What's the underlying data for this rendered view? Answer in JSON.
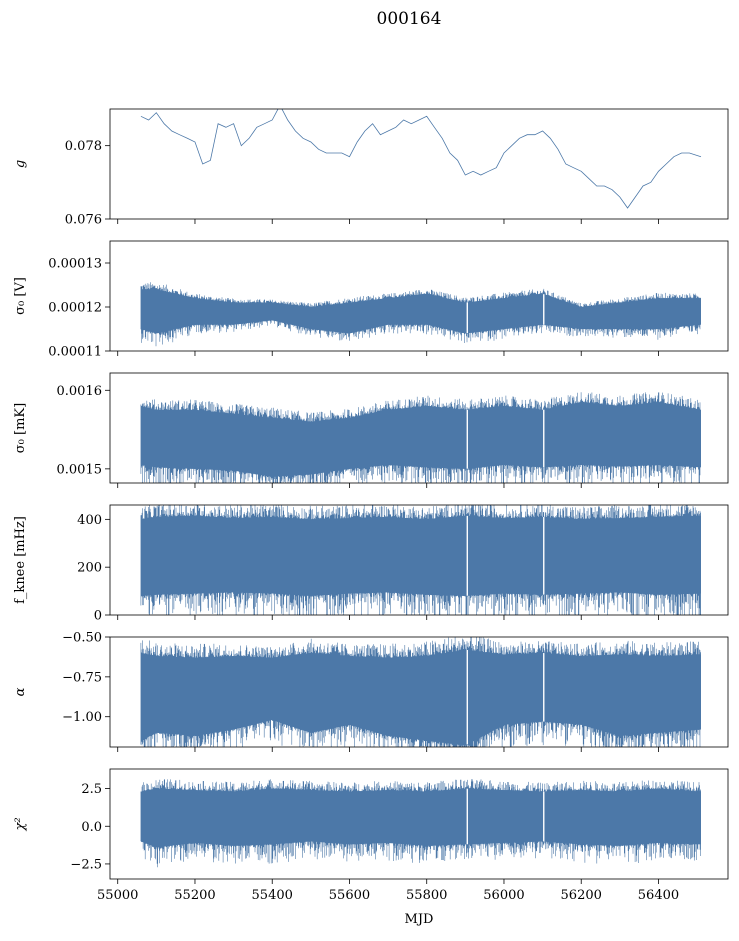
{
  "title": "000164",
  "xlabel": "MJD",
  "color": "#4c78a8",
  "chart_data": [
    {
      "type": "line",
      "ylabel": "g",
      "xlim": [
        54980,
        56580
      ],
      "ylim": [
        0.076,
        0.079
      ],
      "yticks": [
        "0.076",
        "0.078"
      ],
      "ytick_values": [
        0.076,
        0.078
      ],
      "band": false,
      "series": [
        {
          "x": [
            55060,
            55080,
            55100,
            55120,
            55140,
            55160,
            55180,
            55200,
            55220,
            55240,
            55260,
            55280,
            55300,
            55320,
            55340,
            55360,
            55380,
            55400,
            55420,
            55440,
            55460,
            55480,
            55500,
            55520,
            55540,
            55560,
            55580,
            55600,
            55620,
            55640,
            55660,
            55680,
            55700,
            55720,
            55740,
            55760,
            55780,
            55800,
            55820,
            55840,
            55860,
            55880,
            55900,
            55920,
            55940,
            55960,
            55980,
            56000,
            56020,
            56040,
            56060,
            56080,
            56100,
            56120,
            56140,
            56160,
            56180,
            56200,
            56220,
            56240,
            56260,
            56280,
            56300,
            56320,
            56340,
            56360,
            56380,
            56400,
            56420,
            56440,
            56460,
            56480,
            56510
          ],
          "values": [
            0.0788,
            0.0787,
            0.0789,
            0.0786,
            0.0784,
            0.0783,
            0.0782,
            0.0781,
            0.0775,
            0.0776,
            0.0786,
            0.0785,
            0.0786,
            0.078,
            0.0782,
            0.0785,
            0.0786,
            0.0787,
            0.0791,
            0.0787,
            0.0784,
            0.0782,
            0.0781,
            0.0779,
            0.0778,
            0.0778,
            0.0778,
            0.0777,
            0.0781,
            0.0784,
            0.0786,
            0.0783,
            0.0784,
            0.0785,
            0.0787,
            0.0786,
            0.0787,
            0.0788,
            0.0785,
            0.0782,
            0.0778,
            0.0776,
            0.0772,
            0.0773,
            0.0772,
            0.0773,
            0.0774,
            0.0778,
            0.078,
            0.0782,
            0.0783,
            0.0783,
            0.0784,
            0.0782,
            0.0779,
            0.0775,
            0.0774,
            0.0773,
            0.0771,
            0.0769,
            0.0769,
            0.0768,
            0.0766,
            0.0763,
            0.0766,
            0.0769,
            0.077,
            0.0773,
            0.0775,
            0.0777,
            0.0778,
            0.0778,
            0.0777
          ]
        }
      ]
    },
    {
      "type": "line",
      "ylabel": "σ₀ [V]",
      "xlim": [
        54980,
        56580
      ],
      "ylim": [
        0.00011,
        0.000135
      ],
      "yticks": [
        "0.00011",
        "0.00012",
        "0.00013"
      ],
      "ytick_values": [
        0.00011,
        0.00012,
        0.00013
      ],
      "band": true,
      "series": [
        {
          "x": [
            55060,
            55100,
            55200,
            55300,
            55400,
            55500,
            55600,
            55700,
            55800,
            55900,
            56000,
            56100,
            56200,
            56300,
            56400,
            56510
          ],
          "upper": [
            0.000124,
            0.000124,
            0.000122,
            0.000121,
            0.000121,
            0.00012,
            0.000121,
            0.000122,
            0.000123,
            0.000121,
            0.000122,
            0.000123,
            0.00012,
            0.000121,
            0.000122,
            0.000122
          ],
          "lower": [
            0.000115,
            0.000114,
            0.000116,
            0.000116,
            0.000117,
            0.000115,
            0.000114,
            0.000116,
            0.000116,
            0.000114,
            0.000115,
            0.000116,
            0.000115,
            0.000115,
            0.000115,
            0.000116
          ]
        }
      ]
    },
    {
      "type": "line",
      "ylabel": "σ₀ [mK]",
      "xlim": [
        54980,
        56580
      ],
      "ylim": [
        0.001482,
        0.001622
      ],
      "yticks": [
        "0.0015",
        "0.0016"
      ],
      "ytick_values": [
        0.0015,
        0.0016
      ],
      "band": true,
      "series": [
        {
          "x": [
            55060,
            55100,
            55200,
            55300,
            55400,
            55500,
            55600,
            55700,
            55800,
            55900,
            56000,
            56100,
            56200,
            56300,
            56400,
            56510
          ],
          "upper": [
            0.00158,
            0.001575,
            0.001575,
            0.00157,
            0.001565,
            0.00156,
            0.001565,
            0.001575,
            0.00158,
            0.001575,
            0.00158,
            0.001575,
            0.001585,
            0.00158,
            0.001585,
            0.001575
          ],
          "lower": [
            0.001505,
            0.001502,
            0.0015,
            0.001498,
            0.00149,
            0.001493,
            0.0015,
            0.001505,
            0.001502,
            0.0015,
            0.001505,
            0.001502,
            0.001505,
            0.001503,
            0.001505,
            0.001502
          ]
        }
      ]
    },
    {
      "type": "line",
      "ylabel": "f_knee [mHz]",
      "xlim": [
        54980,
        56580
      ],
      "ylim": [
        0,
        460
      ],
      "yticks": [
        "0",
        "200",
        "400"
      ],
      "ytick_values": [
        0,
        200,
        400
      ],
      "band": true,
      "series": [
        {
          "x": [
            55060,
            55100,
            55200,
            55300,
            55400,
            55500,
            55600,
            55700,
            55800,
            55900,
            56000,
            56100,
            56200,
            56300,
            56400,
            56510
          ],
          "upper": [
            400,
            410,
            415,
            405,
            410,
            400,
            405,
            410,
            400,
            415,
            405,
            410,
            400,
            405,
            410,
            415
          ],
          "lower": [
            80,
            85,
            90,
            95,
            90,
            80,
            90,
            95,
            85,
            80,
            90,
            85,
            90,
            95,
            85,
            90
          ]
        }
      ]
    },
    {
      "type": "line",
      "ylabel": "α",
      "xlim": [
        54980,
        56580
      ],
      "ylim": [
        -1.19,
        -0.5
      ],
      "yticks": [
        "−1.00",
        "−0.75",
        "−0.50"
      ],
      "ytick_values": [
        -1.0,
        -0.75,
        -0.5
      ],
      "band": true,
      "series": [
        {
          "x": [
            55060,
            55100,
            55200,
            55300,
            55400,
            55500,
            55600,
            55700,
            55800,
            55900,
            56000,
            56100,
            56200,
            56300,
            56400,
            56510
          ],
          "upper": [
            -0.6,
            -0.62,
            -0.63,
            -0.62,
            -0.63,
            -0.6,
            -0.62,
            -0.63,
            -0.62,
            -0.58,
            -0.61,
            -0.6,
            -0.62,
            -0.61,
            -0.62,
            -0.61
          ],
          "lower": [
            -1.15,
            -1.1,
            -1.12,
            -1.08,
            -1.02,
            -1.1,
            -1.05,
            -1.12,
            -1.15,
            -1.18,
            -1.05,
            -1.03,
            -1.05,
            -1.12,
            -1.1,
            -1.08
          ]
        }
      ]
    },
    {
      "type": "line",
      "ylabel": "χ²",
      "xlim": [
        54980,
        56580
      ],
      "ylim": [
        -3.5,
        3.8
      ],
      "yticks": [
        "−2.5",
        "0.0",
        "2.5"
      ],
      "ytick_values": [
        -2.5,
        0.0,
        2.5
      ],
      "band": true,
      "series": [
        {
          "x": [
            55060,
            55100,
            55200,
            55300,
            55400,
            55500,
            55600,
            55700,
            55800,
            55900,
            56000,
            56100,
            56200,
            56300,
            56400,
            56510
          ],
          "upper": [
            2.3,
            2.5,
            2.4,
            2.3,
            2.5,
            2.4,
            2.3,
            2.4,
            2.3,
            2.5,
            2.4,
            2.3,
            2.4,
            2.3,
            2.5,
            2.3
          ],
          "lower": [
            -1.0,
            -1.4,
            -1.1,
            -1.3,
            -1.2,
            -1.0,
            -1.2,
            -1.1,
            -1.3,
            -1.2,
            -1.1,
            -1.0,
            -1.2,
            -1.3,
            -1.1,
            -1.2
          ]
        }
      ]
    }
  ],
  "xticks": [
    "55000",
    "55200",
    "55400",
    "55600",
    "55800",
    "56000",
    "56200",
    "56400"
  ],
  "xtick_values": [
    55000,
    55200,
    55400,
    55600,
    55800,
    56000,
    56200,
    56400
  ]
}
